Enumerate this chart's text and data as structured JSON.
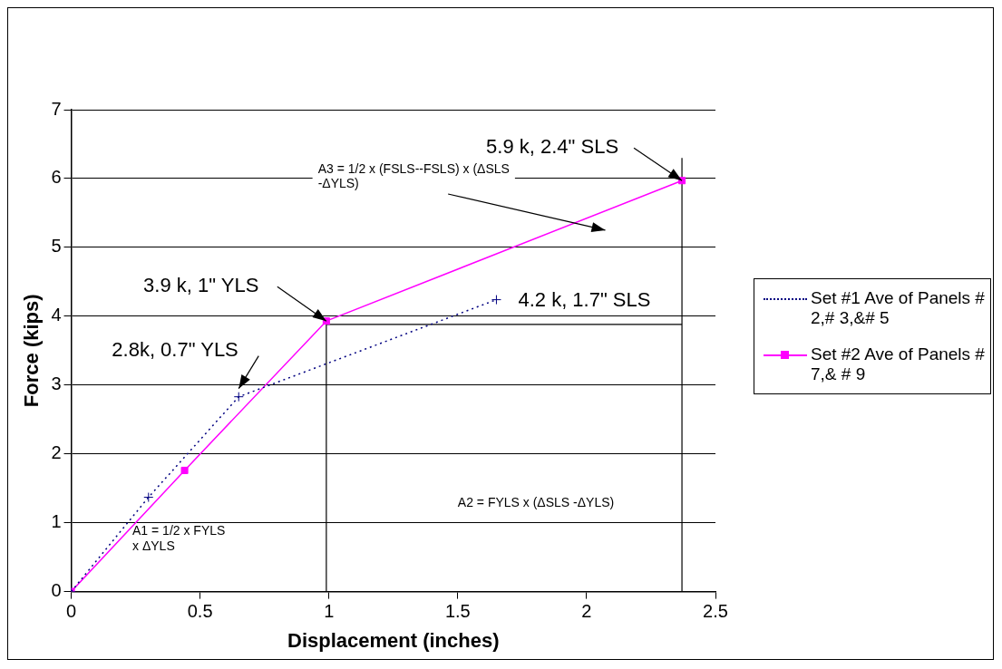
{
  "chart_data": {
    "type": "line",
    "xlabel": "Displacement (inches)",
    "ylabel": "Force (kips)",
    "xlim": [
      0,
      2.5
    ],
    "xticks": [
      0,
      0.5,
      1,
      1.5,
      2,
      2.5
    ],
    "ylim": [
      0,
      7
    ],
    "yticks": [
      0,
      1,
      2,
      3,
      4,
      5,
      6,
      7
    ],
    "grid": "y",
    "legend": "right",
    "series": [
      {
        "name": "Set #1 Ave of Panels # 2,# 3,&# 5",
        "color": "#000080",
        "line_style": "dotted",
        "marker": "cross",
        "x": [
          0,
          0.3,
          0.65,
          1.65
        ],
        "values": [
          0,
          1.37,
          2.83,
          4.24
        ]
      },
      {
        "name": "Set #2 Ave of Panels # 7,& # 9",
        "color": "#ff00ff",
        "line_style": "solid",
        "marker": "square",
        "x": [
          0,
          0.44,
          0.99,
          2.37
        ],
        "values": [
          0,
          1.76,
          3.93,
          5.97
        ]
      },
      {
        "color": "#000000",
        "line_style": "solid",
        "marker": "none",
        "x": [
          0.99,
          0.99,
          2.37
        ],
        "values": [
          0,
          3.88,
          3.88
        ]
      },
      {
        "color": "#000000",
        "line_style": "solid",
        "marker": "none",
        "x": [
          2.37,
          2.37
        ],
        "values": [
          0,
          6.3
        ]
      }
    ],
    "annotations": [
      {
        "text": "5.9 k, 2.4\" SLS",
        "x": 2.37,
        "y": 5.97
      },
      {
        "text": "3.9 k, 1\" YLS",
        "x": 0.99,
        "y": 3.93
      },
      {
        "text": "2.8k, 0.7\" YLS",
        "x": 0.65,
        "y": 2.83
      },
      {
        "text": "4.2 k, 1.7\" SLS",
        "x": 1.65,
        "y": 4.24
      },
      "A3 = 1/2 x (FSLS--FSLS) x (ΔSLS -ΔYLS)",
      "A2 = FYLS x (ΔSLS -ΔYLS)",
      "A1 = 1/2 x FYLS x ΔYLS"
    ]
  }
}
